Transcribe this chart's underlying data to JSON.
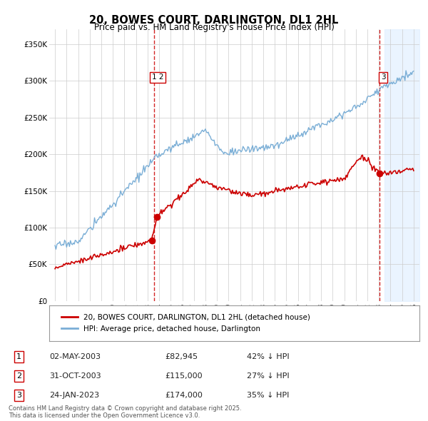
{
  "title": "20, BOWES COURT, DARLINGTON, DL1 2HL",
  "subtitle": "Price paid vs. HM Land Registry's House Price Index (HPI)",
  "legend_label_red": "20, BOWES COURT, DARLINGTON, DL1 2HL (detached house)",
  "legend_label_blue": "HPI: Average price, detached house, Darlington",
  "footer": "Contains HM Land Registry data © Crown copyright and database right 2025.\nThis data is licensed under the Open Government Licence v3.0.",
  "transactions": [
    {
      "num": 1,
      "date": "02-MAY-2003",
      "price": "£82,945",
      "pct": "42% ↓ HPI"
    },
    {
      "num": 2,
      "date": "31-OCT-2003",
      "price": "£115,000",
      "pct": "27% ↓ HPI"
    },
    {
      "num": 3,
      "date": "24-JAN-2023",
      "price": "£174,000",
      "pct": "35% ↓ HPI"
    }
  ],
  "sale_markers": [
    {
      "year": 2003.35,
      "price": 82945,
      "label": "1"
    },
    {
      "year": 2003.83,
      "price": 115000,
      "label": "2"
    },
    {
      "year": 2023.07,
      "price": 174000,
      "label": "3"
    }
  ],
  "label_positions": [
    {
      "year": 2003.37,
      "y": 305000,
      "label": "1 2"
    },
    {
      "year": 2023.1,
      "y": 305000,
      "label": "3"
    }
  ],
  "vline_years": [
    2003.55,
    2023.07
  ],
  "shade_start": 2023.5,
  "shade_end": 2026.5,
  "xmin": 1994.5,
  "xmax": 2026.5,
  "ymin": 0,
  "ymax": 370000,
  "yticks": [
    0,
    50000,
    100000,
    150000,
    200000,
    250000,
    300000,
    350000
  ],
  "ytick_labels": [
    "£0",
    "£50K",
    "£100K",
    "£150K",
    "£200K",
    "£250K",
    "£300K",
    "£350K"
  ],
  "xticks": [
    1995,
    1996,
    1997,
    1998,
    1999,
    2000,
    2001,
    2002,
    2003,
    2004,
    2005,
    2006,
    2007,
    2008,
    2009,
    2010,
    2011,
    2012,
    2013,
    2014,
    2015,
    2016,
    2017,
    2018,
    2019,
    2020,
    2021,
    2022,
    2023,
    2024,
    2025,
    2026
  ],
  "color_red": "#cc0000",
  "color_blue": "#7aaed6",
  "color_vline": "#cc0000",
  "color_shade": "#ddeeff",
  "bg_color": "#ffffff",
  "grid_color": "#cccccc"
}
